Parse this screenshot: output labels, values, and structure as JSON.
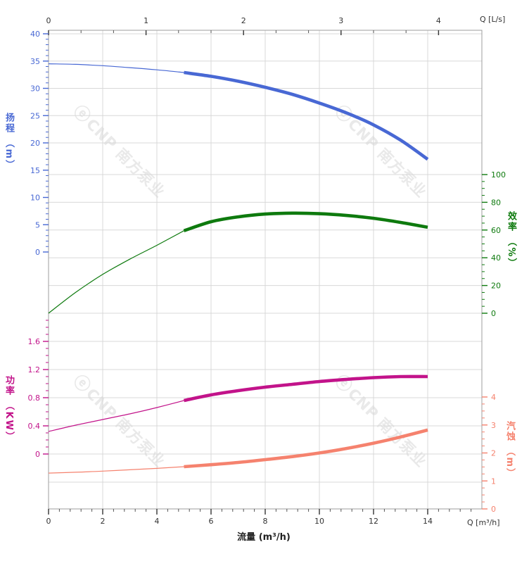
{
  "chart_data": {
    "type": "line",
    "description": "Pump performance curves: head, efficiency, power and NPSH versus flow",
    "x": [
      0,
      1,
      2,
      3,
      4,
      5,
      6,
      7,
      8,
      9,
      10,
      11,
      12,
      13,
      14
    ],
    "x_unit": "m³/h",
    "highlight_range_start": 5,
    "series": [
      {
        "name": "head",
        "label": "扬程",
        "unit": "（m）",
        "axis": "head",
        "color": "#4868d4",
        "values": [
          34.5,
          34.4,
          34.15,
          33.8,
          33.4,
          32.9,
          32.2,
          31.3,
          30.2,
          28.9,
          27.3,
          25.5,
          23.3,
          20.5,
          17.0
        ]
      },
      {
        "name": "efficiency",
        "label": "效率",
        "unit": "（%）",
        "axis": "efficiency",
        "color": "#0e7a0e",
        "values": [
          0,
          15,
          28,
          39,
          49,
          59.5,
          66,
          69.5,
          71.5,
          72.2,
          71.8,
          70.5,
          68.5,
          65.5,
          62
        ]
      },
      {
        "name": "power",
        "label": "功率",
        "unit": "（KW）",
        "axis": "power",
        "color": "#c2138a",
        "values": [
          0.32,
          0.41,
          0.49,
          0.57,
          0.66,
          0.76,
          0.84,
          0.9,
          0.95,
          0.99,
          1.03,
          1.06,
          1.085,
          1.1,
          1.1
        ]
      },
      {
        "name": "npsh",
        "label": "汽蚀",
        "unit": "（m）",
        "axis": "npsh",
        "color": "#f5826e",
        "values": [
          1.28,
          1.31,
          1.35,
          1.4,
          1.45,
          1.51,
          1.58,
          1.66,
          1.76,
          1.87,
          2.0,
          2.16,
          2.35,
          2.57,
          2.82
        ]
      }
    ],
    "axes": {
      "flow": {
        "title": "流量 (m³/h)",
        "corner_label": "Q [m³/h]",
        "ticks": [
          0,
          2,
          4,
          6,
          8,
          10,
          12,
          14
        ],
        "minor_step": 0.4,
        "color": "#333333"
      },
      "flow_ls": {
        "corner_label": "Q [L/s]",
        "ticks": [
          0,
          1,
          2,
          3,
          4
        ],
        "color": "#333333"
      },
      "head": {
        "ticks": [
          40,
          35,
          30,
          25,
          20,
          15,
          10,
          5,
          0
        ],
        "minor_step": 1,
        "color": "#4868d4"
      },
      "efficiency": {
        "ticks": [
          100,
          80,
          60,
          40,
          20,
          0
        ],
        "minor_step": 5,
        "color": "#0e7a0e"
      },
      "power": {
        "ticks": [
          "1.6",
          "1.2",
          "0.8",
          "0.4",
          "0"
        ],
        "minor_step": 0.1,
        "color": "#c2138a"
      },
      "npsh": {
        "ticks": [
          4,
          3,
          2,
          1,
          0
        ],
        "minor_step": 0.25,
        "color": "#f5826e"
      }
    },
    "grid": {
      "on": true,
      "color": "#d8d8d8",
      "border_color": "#9e9e9e"
    }
  },
  "titles": {
    "head": "扬程 （m）",
    "power": "功率 （KW）",
    "efficiency": "效率 （%）",
    "npsh": "汽蚀 （m）",
    "flow": "流量 (m³/h)",
    "q_ls": "Q [L/s]",
    "q_m3h": "Q [m³/h]"
  },
  "watermark": {
    "logo": "ⓔ",
    "text": "CNP 南方泵业"
  }
}
